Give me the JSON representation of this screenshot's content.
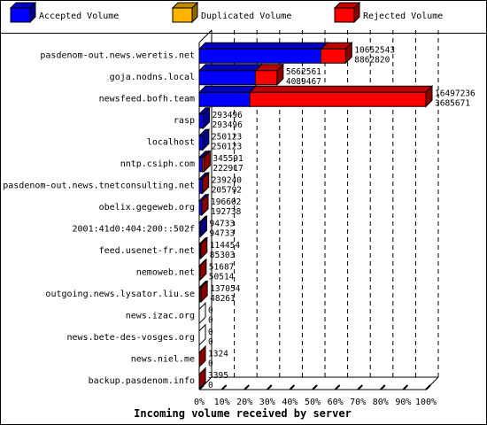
{
  "chart_data": {
    "type": "bar",
    "orientation": "horizontal",
    "stacked": true,
    "three_d": true,
    "title": "Incoming volume received by server",
    "legend_position": "top",
    "legend": [
      {
        "name": "Accepted Volume",
        "color": "#0000ff"
      },
      {
        "name": "Duplicated Volume",
        "color": "#ffb500"
      },
      {
        "name": "Rejected Volume",
        "color": "#ff0000"
      }
    ],
    "x_ticks": [
      "0%",
      "10%",
      "20%",
      "30%",
      "40%",
      "50%",
      "60%",
      "70%",
      "80%",
      "90%",
      "100%"
    ],
    "xlim": [
      0,
      100
    ],
    "grid": true,
    "categories": [
      "pasdenom-out.news.weretis.net",
      "goja.nodns.local",
      "newsfeed.bofh.team",
      "rasp",
      "localhost",
      "nntp.csiph.com",
      "pasdenom-out.news.tnetconsulting.net",
      "obelix.gegeweb.org",
      "2001:41d0:404:200::502f",
      "feed.usenet-fr.net",
      "nemoweb.net",
      "outgoing.news.lysator.liu.se",
      "news.izac.org",
      "news.bete-des-vosges.org",
      "news.niel.me",
      "backup.pasdenom.info"
    ],
    "total_label": [
      "10652543",
      "5662561",
      "16497236",
      "293496",
      "250123",
      "345591",
      "239240",
      "196602",
      "94733",
      "114454",
      "51687",
      "137054",
      "0",
      "0",
      "1324",
      "3395"
    ],
    "accepted_label": [
      "8862820",
      "4089467",
      "3685671",
      "293496",
      "250123",
      "222917",
      "205792",
      "192738",
      "94733",
      "85303",
      "50514",
      "48261",
      "0",
      "0",
      "0",
      "0"
    ],
    "total": [
      10652543,
      5662561,
      16497236,
      293496,
      250123,
      345591,
      239240,
      196602,
      94733,
      114454,
      51687,
      137054,
      0,
      0,
      1324,
      3395
    ],
    "accepted": [
      8862820,
      4089467,
      3685671,
      293496,
      250123,
      222917,
      205792,
      192738,
      94733,
      85303,
      50514,
      48261,
      0,
      0,
      0,
      0
    ]
  }
}
